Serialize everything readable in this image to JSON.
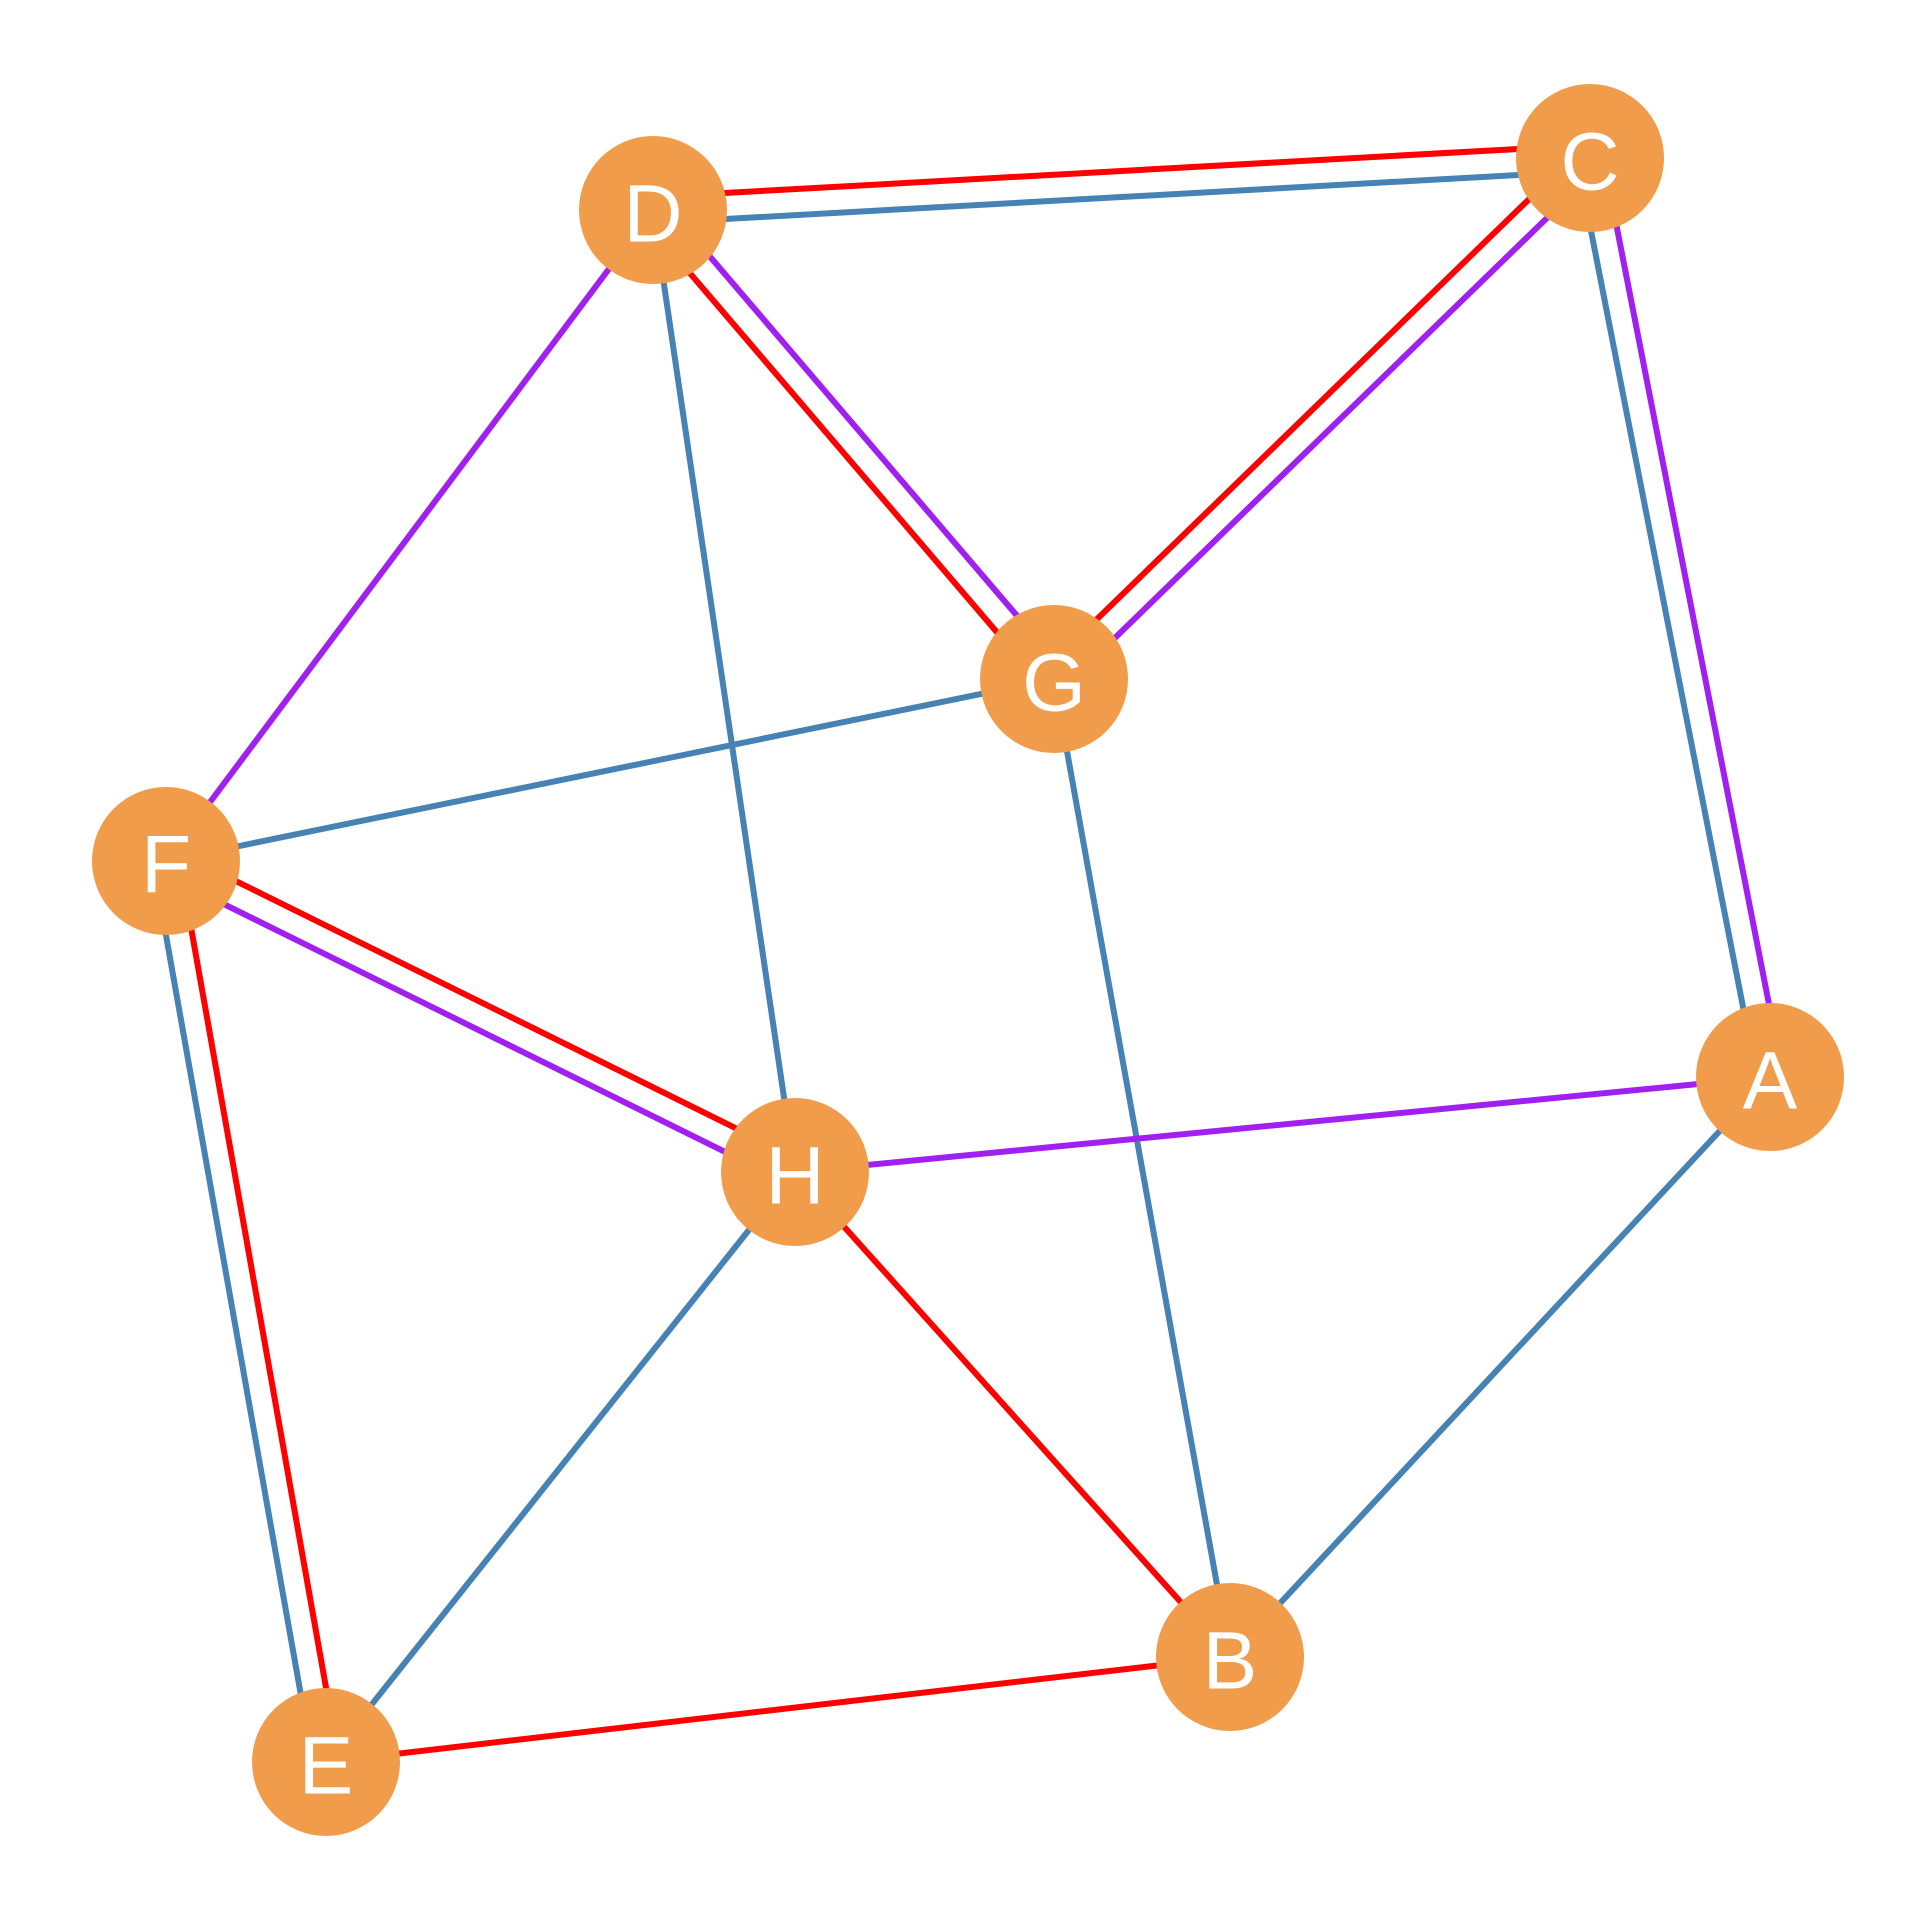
{
  "colors": {
    "background": "#ffffff",
    "node_fill": "#f09c4a",
    "node_label": "#ffffff",
    "edge_red": "#ff0000",
    "edge_blue": "#4682b4",
    "edge_purple": "#a020f0"
  },
  "nodes": [
    {
      "id": "A",
      "label": "A"
    },
    {
      "id": "B",
      "label": "B"
    },
    {
      "id": "C",
      "label": "C"
    },
    {
      "id": "D",
      "label": "D"
    },
    {
      "id": "E",
      "label": "E"
    },
    {
      "id": "F",
      "label": "F"
    },
    {
      "id": "G",
      "label": "G"
    },
    {
      "id": "H",
      "label": "H"
    }
  ],
  "edges": [
    {
      "source": "D",
      "target": "C",
      "colors": [
        "red",
        "blue"
      ]
    },
    {
      "source": "D",
      "target": "G",
      "colors": [
        "purple",
        "red"
      ]
    },
    {
      "source": "D",
      "target": "H",
      "colors": [
        "blue"
      ]
    },
    {
      "source": "D",
      "target": "F",
      "colors": [
        "purple"
      ]
    },
    {
      "source": "C",
      "target": "G",
      "colors": [
        "purple",
        "red"
      ]
    },
    {
      "source": "C",
      "target": "A",
      "colors": [
        "purple",
        "blue"
      ]
    },
    {
      "source": "G",
      "target": "F",
      "colors": [
        "blue"
      ]
    },
    {
      "source": "G",
      "target": "B",
      "colors": [
        "blue"
      ]
    },
    {
      "source": "F",
      "target": "H",
      "colors": [
        "red",
        "purple"
      ]
    },
    {
      "source": "F",
      "target": "E",
      "colors": [
        "red",
        "blue"
      ]
    },
    {
      "source": "H",
      "target": "A",
      "colors": [
        "purple"
      ]
    },
    {
      "source": "H",
      "target": "B",
      "colors": [
        "red"
      ]
    },
    {
      "source": "H",
      "target": "E",
      "colors": [
        "blue"
      ]
    },
    {
      "source": "A",
      "target": "B",
      "colors": [
        "blue"
      ]
    },
    {
      "source": "E",
      "target": "B",
      "colors": [
        "red"
      ]
    }
  ]
}
